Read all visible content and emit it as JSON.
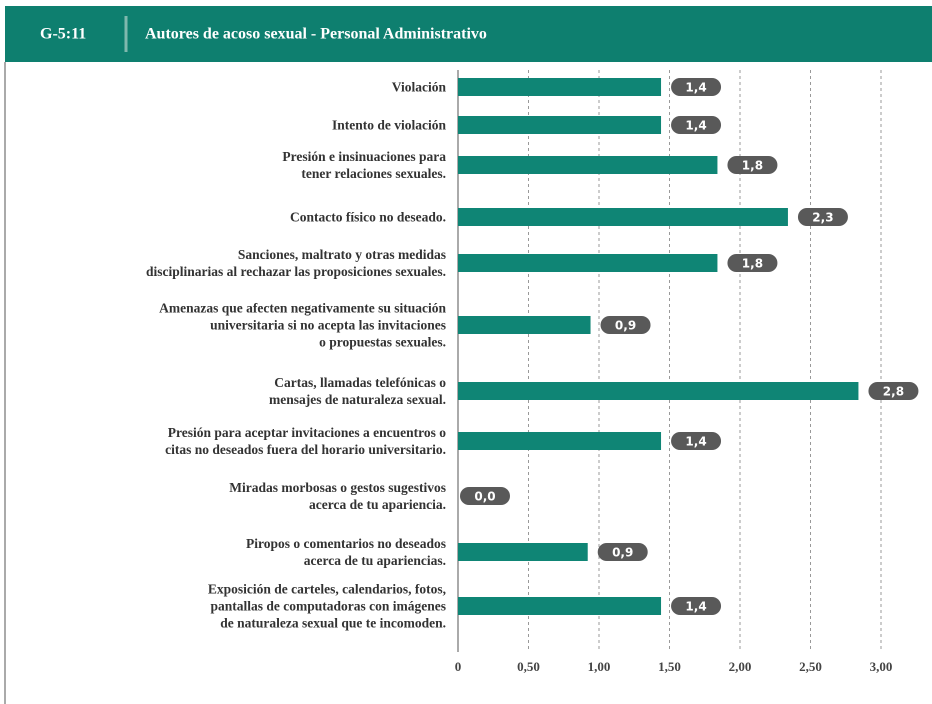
{
  "chart_data": {
    "type": "bar",
    "orientation": "horizontal",
    "figure_id": "G-5:11",
    "title": "Autores de acoso sexual - Personal Administrativo",
    "categories": [
      "Violación",
      "Intento de violación",
      "Presión e insinuaciones para\ntener relaciones sexuales.",
      "Contacto físico no deseado.",
      "Sanciones, maltrato y otras medidas\ndisciplinarias al rechazar las proposiciones sexuales.",
      "Amenazas que afecten negativamente su situación\nuniversitaria si no acepta las invitaciones\no propuestas sexuales.",
      "Cartas, llamadas telefónicas o\nmensajes de naturaleza sexual.",
      "Presión para aceptar invitaciones a encuentros o\ncitas no deseados fuera del horario universitario.",
      "Miradas morbosas o gestos sugestivos\nacerca de tu apariencia.",
      "Piropos o comentarios no deseados\nacerca de tu apariencias.",
      "Exposición de carteles, calendarios, fotos,\npantallas de computadoras con imágenes\nde naturaleza sexual que te incomoden."
    ],
    "values": [
      1.44,
      1.44,
      1.84,
      2.34,
      1.84,
      0.94,
      2.84,
      1.44,
      0,
      0.92,
      1.44
    ],
    "value_labels": [
      "1,4",
      "1,4",
      "1,8",
      "2,3",
      "1,8",
      "0,9",
      "2,8",
      "1,4",
      "0,0",
      "0,9",
      "1,4"
    ],
    "color": "#0f8575",
    "xlim": [
      0,
      3.2
    ],
    "xticks": [
      0,
      {
        "value": 0.5,
        "label": "0,50"
      },
      {
        "value": 1,
        "label": "1,00"
      },
      {
        "value": 1.5,
        "label": "1,50"
      },
      {
        "value": 2,
        "label": "2,00"
      },
      {
        "value": 2.5,
        "label": "2,50"
      },
      {
        "value": 3,
        "label": "3,00"
      }
    ],
    "grid": true
  }
}
